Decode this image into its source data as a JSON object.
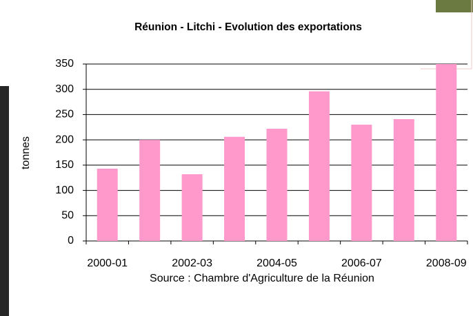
{
  "chart_data": {
    "type": "bar",
    "title": "Réunion - Litchi - Evolution des exportations",
    "ylabel": "tonnes",
    "source": "Source : Chambre d'Agriculture de la Réunion",
    "categories": [
      "2000-01",
      null,
      "2002-03",
      null,
      "2004-05",
      null,
      "2006-07",
      null,
      "2008-09"
    ],
    "values": [
      143,
      200,
      132,
      206,
      222,
      296,
      230,
      241,
      350
    ],
    "color": "#ff99cc",
    "ylim": [
      0,
      350
    ],
    "yticks": [
      0,
      50,
      100,
      150,
      200,
      250,
      300,
      350
    ],
    "grid": true
  }
}
